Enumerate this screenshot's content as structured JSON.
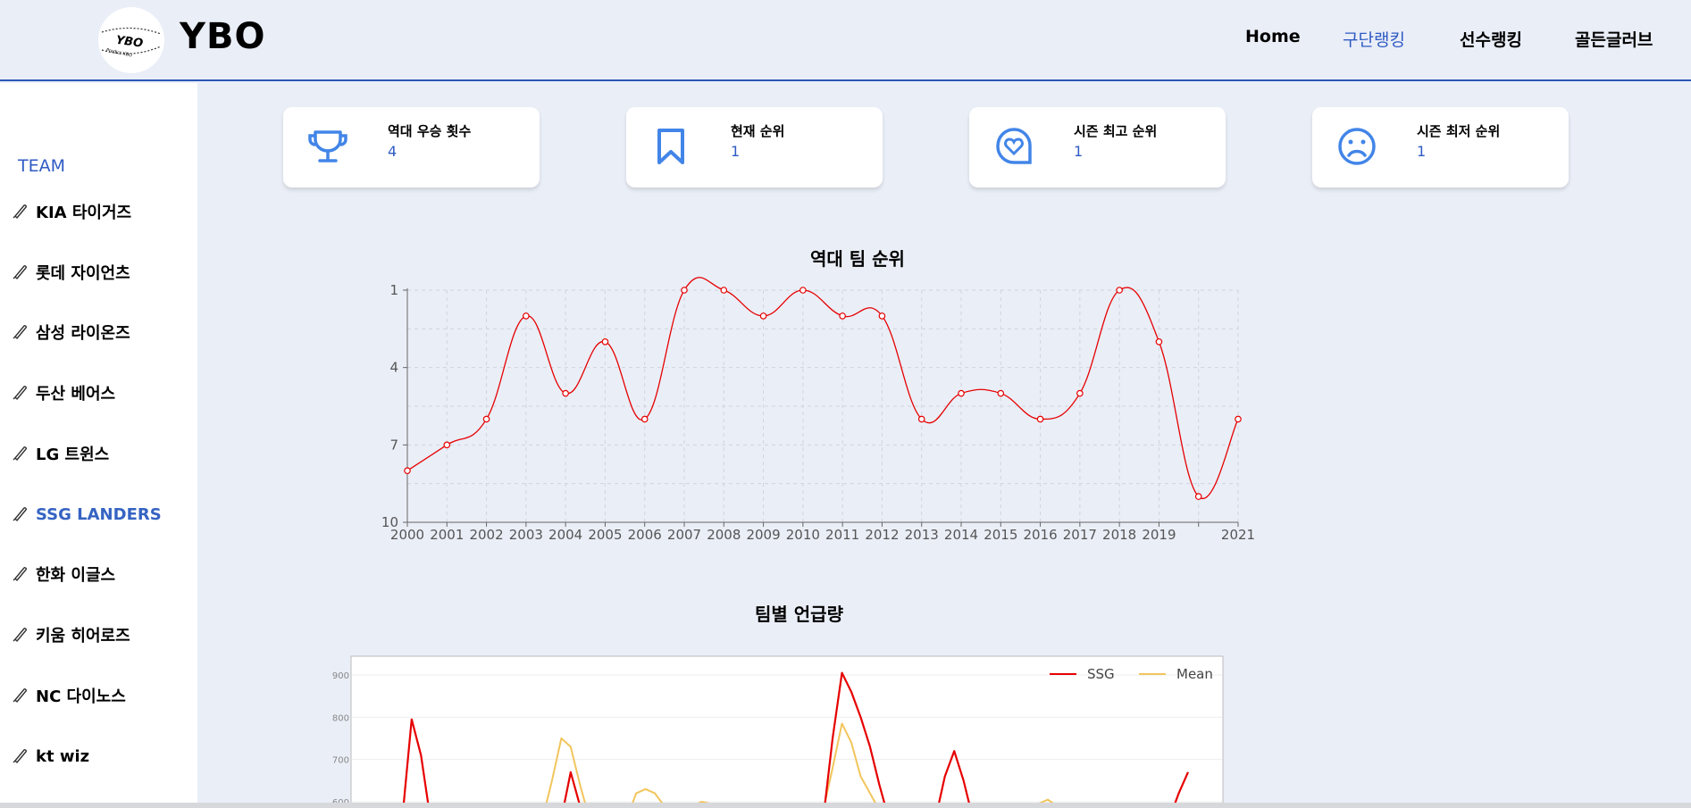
{
  "header": {
    "logo_text": "YBO",
    "logo_badge": "YBO",
    "logo_tagline": "Predict KBO"
  },
  "nav": [
    {
      "label": "Home",
      "active": false
    },
    {
      "label": "구단랭킹",
      "active": true
    },
    {
      "label": "선수랭킹",
      "active": false
    },
    {
      "label": "골든글러브",
      "active": false
    }
  ],
  "sidebar": {
    "title": "TEAM",
    "items": [
      {
        "label": "KIA 타이거즈",
        "active": false
      },
      {
        "label": "롯데 자이언츠",
        "active": false
      },
      {
        "label": "삼성 라이온즈",
        "active": false
      },
      {
        "label": "두산 베어스",
        "active": false
      },
      {
        "label": "LG 트윈스",
        "active": false
      },
      {
        "label": "SSG LANDERS",
        "active": true
      },
      {
        "label": "한화 이글스",
        "active": false
      },
      {
        "label": "키움 히어로즈",
        "active": false
      },
      {
        "label": "NC 다이노스",
        "active": false
      },
      {
        "label": "kt wiz",
        "active": false
      }
    ]
  },
  "cards": [
    {
      "label": "역대 우승 횟수",
      "value": "4",
      "icon": "trophy-icon"
    },
    {
      "label": "현재 순위",
      "value": "1",
      "icon": "bookmark-icon"
    },
    {
      "label": "시즌 최고 순위",
      "value": "1",
      "icon": "heart-badge-icon"
    },
    {
      "label": "시즌 최저 순위",
      "value": "1",
      "icon": "sad-face-icon"
    }
  ],
  "colors": {
    "accent": "#2f5bc4",
    "series_red": "#e60000",
    "series_mean": "#f2c55c"
  },
  "chart_data": [
    {
      "type": "line",
      "title": "역대 팀 순위",
      "x": [
        "2000",
        "2001",
        "2002",
        "2003",
        "2004",
        "2005",
        "2006",
        "2007",
        "2008",
        "2009",
        "2010",
        "2011",
        "2012",
        "2013",
        "2014",
        "2015",
        "2016",
        "2017",
        "2018",
        "2019",
        "2020",
        "2021"
      ],
      "x_tick_labels": [
        "2000",
        "2001",
        "2002",
        "2003",
        "2004",
        "2005",
        "2006",
        "2007",
        "2008",
        "2009",
        "2010",
        "2011",
        "2012",
        "2013",
        "2014",
        "2015",
        "2016",
        "2017",
        "2018",
        "2019",
        "",
        "2021"
      ],
      "values": [
        8,
        7,
        6,
        2,
        5,
        3,
        6,
        1,
        1,
        2,
        1,
        2,
        2,
        6,
        5,
        5,
        6,
        5,
        1,
        3,
        9,
        6
      ],
      "y_ticks": [
        1,
        4,
        7,
        10
      ],
      "ylim": [
        1,
        10
      ],
      "y_inverted": true,
      "grid": true,
      "color": "#e60000"
    },
    {
      "type": "line",
      "title": "팀별 언급량",
      "y_ticks": [
        900,
        800,
        700,
        600
      ],
      "ylim": [
        580,
        940
      ],
      "legend": "top-right",
      "series": [
        {
          "name": "SSG",
          "color": "#e60000",
          "values": [
            560,
            560,
            560,
            560,
            560,
            560,
            795,
            710,
            560,
            560,
            560,
            560,
            560,
            560,
            560,
            560,
            560,
            560,
            560,
            560,
            560,
            560,
            560,
            670,
            590,
            560,
            560,
            560,
            560,
            560,
            560,
            560,
            560,
            560,
            560,
            560,
            560,
            560,
            560,
            560,
            560,
            560,
            560,
            560,
            560,
            560,
            560,
            560,
            560,
            560,
            560,
            750,
            905,
            860,
            800,
            730,
            640,
            560,
            560,
            560,
            560,
            560,
            560,
            660,
            720,
            650,
            560,
            560,
            560,
            560,
            560,
            560,
            560,
            560,
            560,
            560,
            560,
            560,
            560,
            560,
            560,
            560,
            560,
            560,
            560,
            560,
            560,
            560,
            620,
            670
          ]
        },
        {
          "name": "Mean",
          "color": "#f2c55c",
          "values": [
            560,
            560,
            560,
            560,
            560,
            560,
            560,
            560,
            560,
            560,
            560,
            560,
            560,
            560,
            560,
            560,
            560,
            560,
            560,
            560,
            560,
            650,
            750,
            730,
            640,
            560,
            560,
            560,
            560,
            560,
            620,
            630,
            620,
            590,
            570,
            575,
            590,
            600,
            595,
            580,
            580,
            580,
            580,
            580,
            580,
            580,
            580,
            580,
            580,
            580,
            580,
            680,
            785,
            740,
            660,
            620,
            580,
            560,
            560,
            560,
            560,
            560,
            560,
            560,
            560,
            560,
            560,
            560,
            560,
            560,
            560,
            560,
            560,
            595,
            605,
            590,
            575,
            565,
            560,
            560,
            560,
            560,
            560,
            560,
            560,
            560,
            560,
            560,
            560,
            560
          ]
        }
      ]
    }
  ]
}
